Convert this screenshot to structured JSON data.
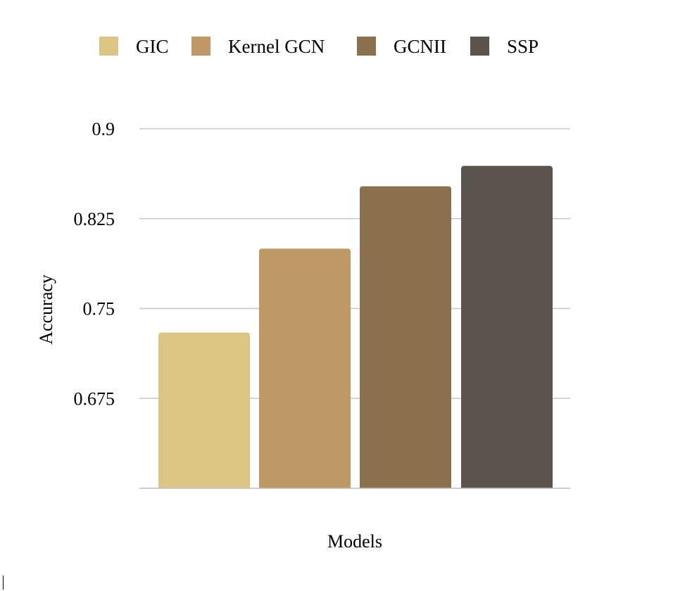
{
  "chart_data": {
    "type": "bar",
    "title": "",
    "xlabel": "Models",
    "ylabel": "Accuracy",
    "categories": [
      "GIC",
      "Kernel GCN",
      "GCNII",
      "SSP"
    ],
    "values": [
      0.73,
      0.8,
      0.852,
      0.869
    ],
    "colors": [
      "#dcc684",
      "#bf9866",
      "#8a704c",
      "#5b544a"
    ],
    "ylim": [
      0.6,
      0.9
    ],
    "yticks": [
      0.675,
      0.75,
      0.825,
      0.9
    ],
    "ytick_labels": [
      "0.675",
      "0.75",
      "0.825",
      "0.9"
    ],
    "grid": true,
    "legend_position": "top"
  },
  "legend": {
    "items": [
      {
        "label": "GIC",
        "color": "#dcc684"
      },
      {
        "label": "Kernel GCN",
        "color": "#bf9866"
      },
      {
        "label": "GCNII",
        "color": "#8a704c"
      },
      {
        "label": "SSP",
        "color": "#5b544a"
      }
    ]
  }
}
